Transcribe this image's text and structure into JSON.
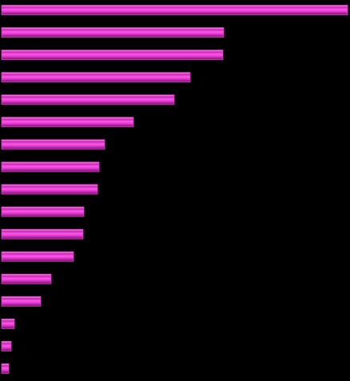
{
  "chart_data": {
    "type": "hbar",
    "values": [
      433,
      278,
      277,
      236,
      216,
      165,
      129,
      122,
      120,
      103,
      102,
      90,
      62,
      49,
      16,
      12,
      9
    ],
    "color": "#e23ad0",
    "xlim": [
      0,
      433
    ]
  }
}
